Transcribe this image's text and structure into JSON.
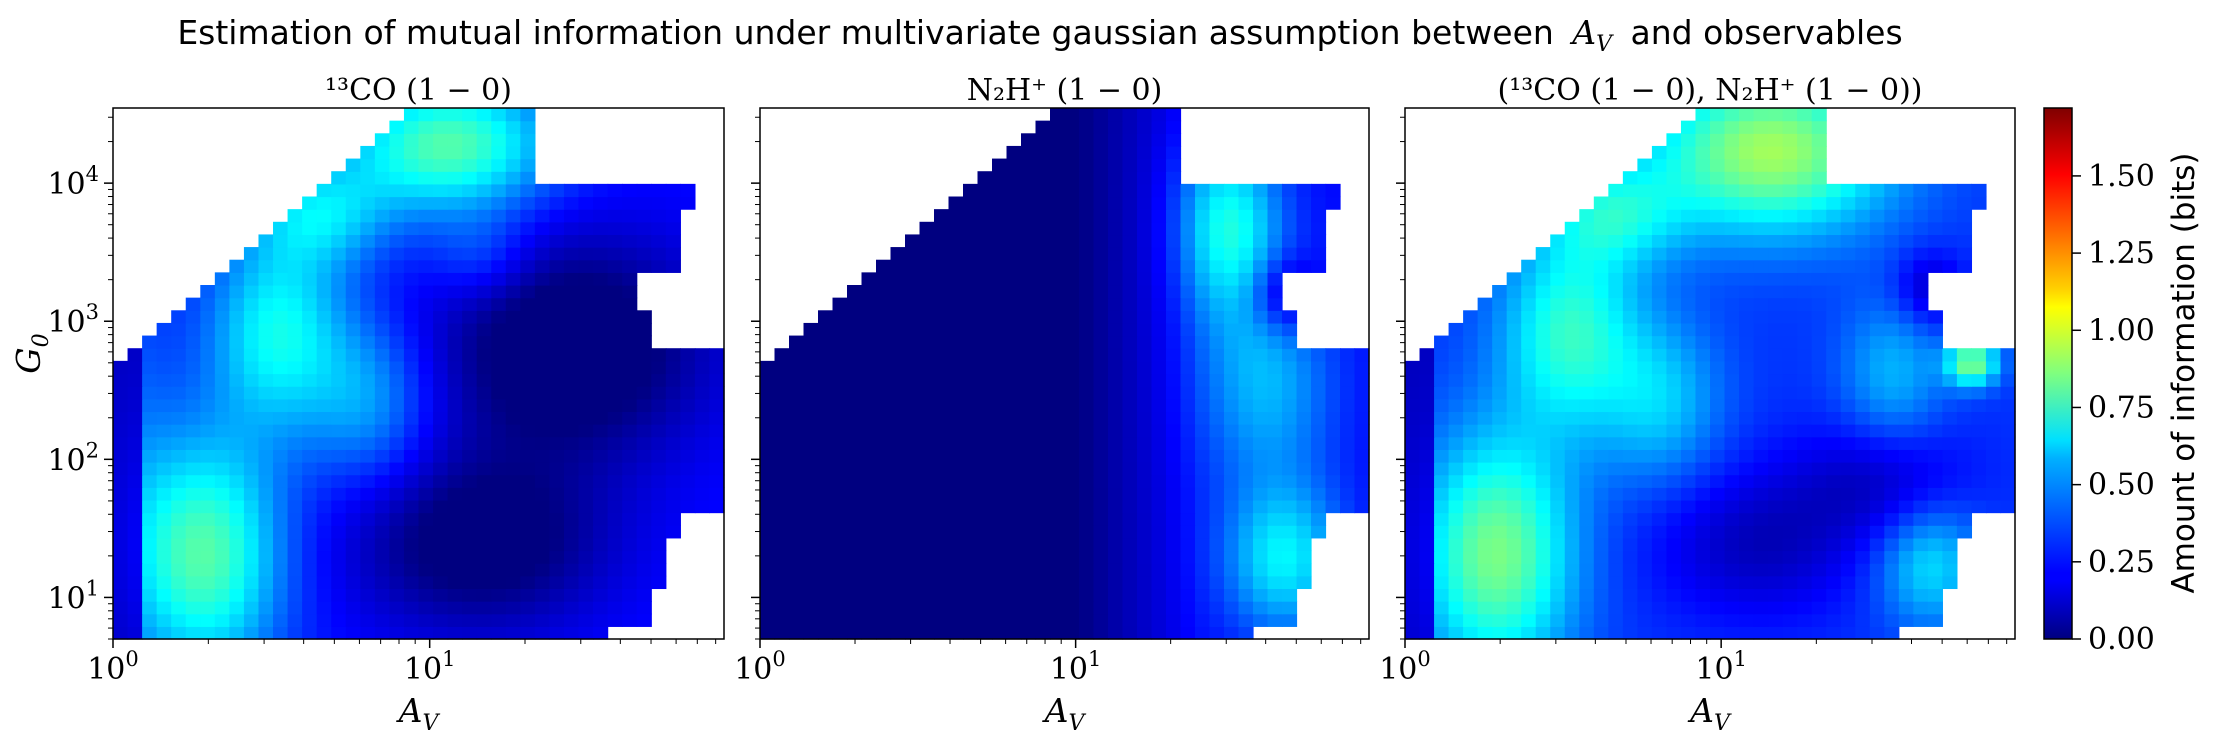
{
  "figure": {
    "suptitle_text": "Estimation of mutual information under multivariate gaussian assumption between",
    "suptitle_symbol_main": "A",
    "suptitle_symbol_sub": "V",
    "suptitle_tail": "and observables",
    "colorbar_label": "Amount of information (bits)"
  },
  "chart_data": [
    {
      "type": "heatmap",
      "title": "¹³CO (1 − 0)",
      "xlabel": "A_V",
      "ylabel": "G_0",
      "xscale": "log",
      "yscale": "log",
      "xlim": [
        1,
        85
      ],
      "ylim": [
        5,
        35000
      ],
      "x_ticks": [
        {
          "main": "10",
          "sup": "0",
          "value": 1
        },
        {
          "main": "10",
          "sup": "1",
          "value": 10
        }
      ],
      "y_ticks": [
        {
          "main": "10",
          "sup": "1",
          "value": 10
        },
        {
          "main": "10",
          "sup": "2",
          "value": 100
        },
        {
          "main": "10",
          "sup": "3",
          "value": 1000
        },
        {
          "main": "10",
          "sup": "4",
          "value": 10000
        }
      ],
      "colormap": "jet",
      "color_range": [
        0,
        1.72
      ],
      "features": [
        {
          "cx": 0.15,
          "cy": 0.16,
          "sx": 0.09,
          "sy": 0.16,
          "amp": 0.55
        },
        {
          "cx": 0.27,
          "cy": 0.58,
          "sx": 0.08,
          "sy": 0.13,
          "amp": 0.42
        },
        {
          "cx": 0.42,
          "cy": 0.45,
          "sx": 0.07,
          "sy": 0.11,
          "amp": 0.25
        },
        {
          "cx": 0.55,
          "cy": 0.93,
          "sx": 0.12,
          "sy": 0.09,
          "amp": 0.55
        },
        {
          "cx": 0.34,
          "cy": 0.8,
          "sx": 0.08,
          "sy": 0.07,
          "amp": 0.3
        },
        {
          "cx": 0.03,
          "cy": 0.4,
          "sx": 0.05,
          "sy": 0.3,
          "amp": 0.1
        },
        {
          "cx": 0.6,
          "cy": 0.72,
          "sx": 0.06,
          "sy": 0.06,
          "amp": 0.15
        }
      ],
      "lows": [
        {
          "cx": 0.6,
          "cy": 0.18,
          "sx": 0.15,
          "sy": 0.12,
          "amp": 0.3
        },
        {
          "cx": 0.75,
          "cy": 0.55,
          "sx": 0.16,
          "sy": 0.15,
          "amp": 0.35
        }
      ],
      "base": 0.24
    },
    {
      "type": "heatmap",
      "title": "N₂H⁺ (1 − 0)",
      "xlabel": "A_V",
      "xscale": "log",
      "yscale": "log",
      "xlim": [
        1,
        85
      ],
      "ylim": [
        5,
        35000
      ],
      "x_ticks": [
        {
          "main": "10",
          "sup": "0",
          "value": 1
        },
        {
          "main": "10",
          "sup": "1",
          "value": 10
        }
      ],
      "colormap": "jet",
      "color_range": [
        0,
        1.72
      ],
      "features": [
        {
          "cx": 0.77,
          "cy": 0.78,
          "sx": 0.06,
          "sy": 0.12,
          "amp": 0.45
        },
        {
          "cx": 0.83,
          "cy": 0.48,
          "sx": 0.08,
          "sy": 0.14,
          "amp": 0.3
        },
        {
          "cx": 0.86,
          "cy": 0.15,
          "sx": 0.07,
          "sy": 0.1,
          "amp": 0.4
        }
      ],
      "lows": [
        {
          "cx": 0.86,
          "cy": 0.65,
          "sx": 0.04,
          "sy": 0.05,
          "amp": 0.25
        }
      ],
      "base": 0.0,
      "ramp": {
        "start": 0.52,
        "end": 0.72,
        "value": 0.22
      }
    },
    {
      "type": "heatmap",
      "title": "(¹³CO (1 − 0), N₂H⁺ (1 − 0))",
      "xlabel": "A_V",
      "xscale": "log",
      "yscale": "log",
      "xlim": [
        1,
        85
      ],
      "ylim": [
        5,
        35000
      ],
      "x_ticks": [
        {
          "main": "10",
          "sup": "0",
          "value": 1
        },
        {
          "main": "10",
          "sup": "1",
          "value": 10
        }
      ],
      "colormap": "jet",
      "color_range": [
        0,
        1.72
      ],
      "features": [
        {
          "cx": 0.15,
          "cy": 0.16,
          "sx": 0.09,
          "sy": 0.16,
          "amp": 0.55
        },
        {
          "cx": 0.27,
          "cy": 0.58,
          "sx": 0.08,
          "sy": 0.13,
          "amp": 0.42
        },
        {
          "cx": 0.42,
          "cy": 0.45,
          "sx": 0.07,
          "sy": 0.11,
          "amp": 0.25
        },
        {
          "cx": 0.6,
          "cy": 0.92,
          "sx": 0.14,
          "sy": 0.11,
          "amp": 0.62
        },
        {
          "cx": 0.34,
          "cy": 0.8,
          "sx": 0.08,
          "sy": 0.07,
          "amp": 0.3
        },
        {
          "cx": 0.8,
          "cy": 0.5,
          "sx": 0.06,
          "sy": 0.1,
          "amp": 0.22
        },
        {
          "cx": 0.93,
          "cy": 0.52,
          "sx": 0.03,
          "sy": 0.03,
          "amp": 0.55
        },
        {
          "cx": 0.86,
          "cy": 0.14,
          "sx": 0.06,
          "sy": 0.08,
          "amp": 0.3
        }
      ],
      "lows": [
        {
          "cx": 0.58,
          "cy": 0.18,
          "sx": 0.12,
          "sy": 0.1,
          "amp": 0.2
        },
        {
          "cx": 0.78,
          "cy": 0.3,
          "sx": 0.1,
          "sy": 0.08,
          "amp": 0.18
        },
        {
          "cx": 0.86,
          "cy": 0.66,
          "sx": 0.04,
          "sy": 0.05,
          "amp": 0.2
        }
      ],
      "base": 0.3
    }
  ],
  "colorbar": {
    "min": 0.0,
    "max": 1.72,
    "ticks": [
      "0.00",
      "0.25",
      "0.50",
      "0.75",
      "1.00",
      "1.25",
      "1.50"
    ],
    "tick_values": [
      0.0,
      0.25,
      0.5,
      0.75,
      1.0,
      1.25,
      1.5
    ]
  }
}
